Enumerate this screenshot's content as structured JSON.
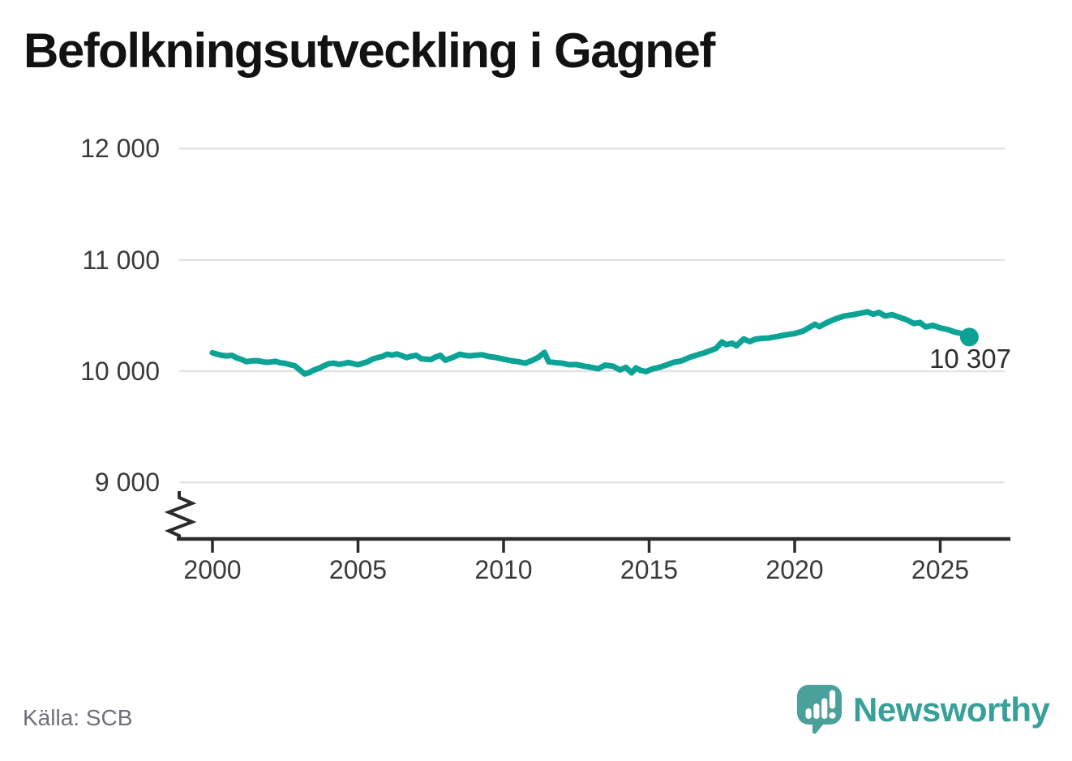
{
  "title": "Befolkningsutveckling i Gagnef",
  "source": "Källa: SCB",
  "logo": {
    "text": "Newsworthy",
    "mark": "newsworthy-speech-bubble-chart-icon"
  },
  "colors": {
    "line": "#0aa396",
    "gridline": "#e2e2e2",
    "axis": "#2b2b2b",
    "tick_text": "#3a3a3a",
    "logo_teal": "#4aa19b"
  },
  "chart_data": {
    "type": "line",
    "title": "Befolkningsutveckling i Gagnef",
    "source": "Källa: SCB",
    "xlabel": "",
    "ylabel": "",
    "x_ticks": [
      {
        "value": 2000,
        "label": "2000"
      },
      {
        "value": 2005,
        "label": "2005"
      },
      {
        "value": 2010,
        "label": "2010"
      },
      {
        "value": 2015,
        "label": "2015"
      },
      {
        "value": 2020,
        "label": "2020"
      },
      {
        "value": 2025,
        "label": "2025"
      }
    ],
    "y_ticks": [
      {
        "value": 12000,
        "label": "12 000"
      },
      {
        "value": 11000,
        "label": "11 000"
      },
      {
        "value": 10000,
        "label": "10 000"
      },
      {
        "value": 9000,
        "label": "9 000"
      }
    ],
    "ylim_shown": [
      9000,
      12000
    ],
    "axis_break": true,
    "grid": true,
    "legend": "none",
    "end_annotation": {
      "label": "10 307",
      "x": 2026.0,
      "y": 10307
    },
    "series": [
      {
        "name": "Befolkning i Gagnef",
        "color": "#0aa396",
        "points": [
          [
            2000.0,
            10165
          ],
          [
            2000.17,
            10152
          ],
          [
            2000.33,
            10142
          ],
          [
            2000.5,
            10138
          ],
          [
            2000.67,
            10142
          ],
          [
            2000.83,
            10120
          ],
          [
            2001.0,
            10105
          ],
          [
            2001.17,
            10085
          ],
          [
            2001.33,
            10092
          ],
          [
            2001.5,
            10095
          ],
          [
            2001.67,
            10088
          ],
          [
            2001.83,
            10080
          ],
          [
            2002.0,
            10082
          ],
          [
            2002.17,
            10088
          ],
          [
            2002.33,
            10075
          ],
          [
            2002.5,
            10070
          ],
          [
            2002.67,
            10058
          ],
          [
            2002.83,
            10048
          ],
          [
            2003.0,
            10012
          ],
          [
            2003.17,
            9975
          ],
          [
            2003.33,
            9988
          ],
          [
            2003.5,
            10012
          ],
          [
            2003.67,
            10028
          ],
          [
            2003.83,
            10048
          ],
          [
            2004.0,
            10068
          ],
          [
            2004.17,
            10072
          ],
          [
            2004.33,
            10062
          ],
          [
            2004.5,
            10068
          ],
          [
            2004.67,
            10078
          ],
          [
            2004.83,
            10068
          ],
          [
            2005.0,
            10058
          ],
          [
            2005.17,
            10072
          ],
          [
            2005.33,
            10085
          ],
          [
            2005.5,
            10108
          ],
          [
            2005.67,
            10122
          ],
          [
            2005.83,
            10132
          ],
          [
            2006.0,
            10152
          ],
          [
            2006.17,
            10144
          ],
          [
            2006.33,
            10155
          ],
          [
            2006.5,
            10140
          ],
          [
            2006.67,
            10122
          ],
          [
            2006.83,
            10135
          ],
          [
            2007.0,
            10142
          ],
          [
            2007.17,
            10112
          ],
          [
            2007.33,
            10108
          ],
          [
            2007.5,
            10105
          ],
          [
            2007.67,
            10128
          ],
          [
            2007.83,
            10142
          ],
          [
            2008.0,
            10098
          ],
          [
            2008.17,
            10115
          ],
          [
            2008.33,
            10132
          ],
          [
            2008.5,
            10152
          ],
          [
            2008.67,
            10142
          ],
          [
            2008.83,
            10138
          ],
          [
            2009.0,
            10142
          ],
          [
            2009.25,
            10148
          ],
          [
            2009.5,
            10132
          ],
          [
            2009.75,
            10122
          ],
          [
            2010.0,
            10108
          ],
          [
            2010.25,
            10095
          ],
          [
            2010.5,
            10085
          ],
          [
            2010.75,
            10072
          ],
          [
            2011.0,
            10098
          ],
          [
            2011.2,
            10125
          ],
          [
            2011.4,
            10168
          ],
          [
            2011.55,
            10085
          ],
          [
            2011.75,
            10078
          ],
          [
            2012.0,
            10072
          ],
          [
            2012.25,
            10058
          ],
          [
            2012.5,
            10060
          ],
          [
            2012.75,
            10046
          ],
          [
            2013.0,
            10035
          ],
          [
            2013.25,
            10022
          ],
          [
            2013.5,
            10055
          ],
          [
            2013.75,
            10045
          ],
          [
            2014.0,
            10012
          ],
          [
            2014.2,
            10034
          ],
          [
            2014.4,
            9985
          ],
          [
            2014.55,
            10030
          ],
          [
            2014.7,
            10008
          ],
          [
            2014.9,
            9996
          ],
          [
            2015.1,
            10020
          ],
          [
            2015.35,
            10034
          ],
          [
            2015.6,
            10056
          ],
          [
            2015.85,
            10080
          ],
          [
            2016.1,
            10092
          ],
          [
            2016.4,
            10125
          ],
          [
            2016.7,
            10150
          ],
          [
            2016.9,
            10165
          ],
          [
            2017.1,
            10185
          ],
          [
            2017.3,
            10205
          ],
          [
            2017.5,
            10262
          ],
          [
            2017.65,
            10238
          ],
          [
            2017.85,
            10252
          ],
          [
            2018.0,
            10228
          ],
          [
            2018.25,
            10290
          ],
          [
            2018.45,
            10266
          ],
          [
            2018.65,
            10288
          ],
          [
            2018.85,
            10294
          ],
          [
            2019.1,
            10298
          ],
          [
            2019.4,
            10312
          ],
          [
            2019.7,
            10326
          ],
          [
            2020.0,
            10338
          ],
          [
            2020.3,
            10362
          ],
          [
            2020.55,
            10400
          ],
          [
            2020.7,
            10422
          ],
          [
            2020.85,
            10400
          ],
          [
            2021.1,
            10436
          ],
          [
            2021.4,
            10470
          ],
          [
            2021.7,
            10496
          ],
          [
            2022.0,
            10508
          ],
          [
            2022.25,
            10520
          ],
          [
            2022.5,
            10533
          ],
          [
            2022.7,
            10512
          ],
          [
            2022.9,
            10528
          ],
          [
            2023.1,
            10496
          ],
          [
            2023.35,
            10508
          ],
          [
            2023.6,
            10484
          ],
          [
            2023.85,
            10462
          ],
          [
            2024.1,
            10428
          ],
          [
            2024.3,
            10438
          ],
          [
            2024.5,
            10398
          ],
          [
            2024.75,
            10412
          ],
          [
            2025.0,
            10388
          ],
          [
            2025.25,
            10375
          ],
          [
            2025.5,
            10352
          ],
          [
            2025.75,
            10338
          ],
          [
            2026.0,
            10307
          ]
        ]
      }
    ]
  }
}
